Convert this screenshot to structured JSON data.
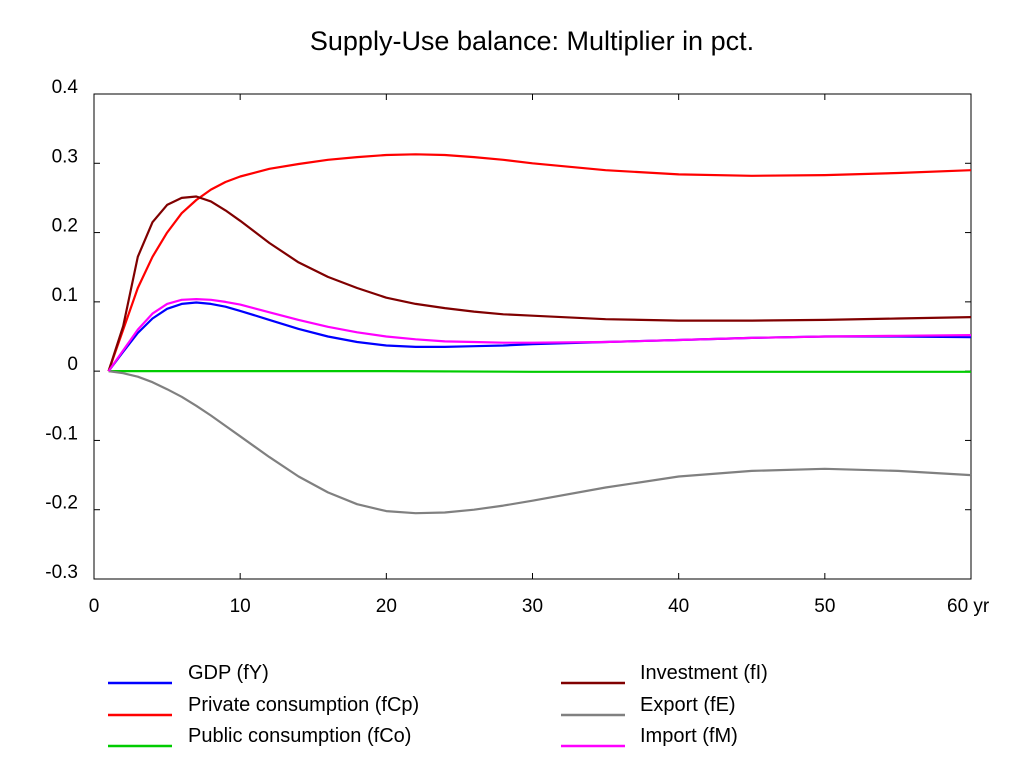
{
  "chart_data": {
    "type": "line",
    "title": "Supply-Use balance: Multiplier in pct.",
    "xlabel": "",
    "ylabel": "",
    "x_unit_label": "yr",
    "xlim": [
      0,
      60
    ],
    "ylim": [
      -0.3,
      0.4
    ],
    "x_ticks": [
      0,
      10,
      20,
      30,
      40,
      50,
      60
    ],
    "x_tick_labels": [
      "0",
      "10",
      "20",
      "30",
      "40",
      "50",
      "60 yr"
    ],
    "y_ticks": [
      -0.3,
      -0.2,
      -0.1,
      0,
      0.1,
      0.2,
      0.3,
      0.4
    ],
    "y_tick_labels": [
      "-0.3",
      "-0.2",
      "-0.1",
      "0",
      "0.1",
      "0.2",
      "0.3",
      "0.4"
    ],
    "grid": false,
    "legend_position": "bottom",
    "series": [
      {
        "name": "GDP (fY)",
        "color": "#0000ff",
        "x": [
          1,
          2,
          3,
          4,
          5,
          6,
          7,
          8,
          9,
          10,
          12,
          14,
          16,
          18,
          20,
          22,
          24,
          26,
          28,
          30,
          35,
          40,
          45,
          50,
          55,
          60
        ],
        "y": [
          0,
          0.028,
          0.055,
          0.076,
          0.09,
          0.097,
          0.099,
          0.097,
          0.093,
          0.087,
          0.074,
          0.061,
          0.05,
          0.042,
          0.037,
          0.035,
          0.035,
          0.036,
          0.037,
          0.039,
          0.042,
          0.045,
          0.048,
          0.05,
          0.05,
          0.049
        ]
      },
      {
        "name": "Private consumption (fCp)",
        "color": "#ff0000",
        "x": [
          1,
          2,
          3,
          4,
          5,
          6,
          7,
          8,
          9,
          10,
          12,
          14,
          16,
          18,
          20,
          22,
          24,
          26,
          28,
          30,
          35,
          40,
          45,
          50,
          55,
          60
        ],
        "y": [
          0,
          0.06,
          0.12,
          0.165,
          0.2,
          0.228,
          0.247,
          0.262,
          0.273,
          0.281,
          0.292,
          0.299,
          0.305,
          0.309,
          0.312,
          0.313,
          0.312,
          0.309,
          0.305,
          0.3,
          0.29,
          0.284,
          0.282,
          0.283,
          0.286,
          0.29
        ]
      },
      {
        "name": "Public consumption (fCo)",
        "color": "#00cc00",
        "x": [
          1,
          10,
          20,
          30,
          40,
          50,
          60
        ],
        "y": [
          0,
          0,
          0,
          -0.001,
          -0.001,
          -0.001,
          -0.001
        ]
      },
      {
        "name": "Investment (fI)",
        "color": "#800000",
        "x": [
          1,
          2,
          3,
          4,
          5,
          6,
          7,
          8,
          9,
          10,
          12,
          14,
          16,
          18,
          20,
          22,
          24,
          26,
          28,
          30,
          35,
          40,
          45,
          50,
          55,
          60
        ],
        "y": [
          0,
          0.065,
          0.165,
          0.215,
          0.24,
          0.25,
          0.252,
          0.245,
          0.232,
          0.217,
          0.185,
          0.157,
          0.136,
          0.12,
          0.106,
          0.097,
          0.091,
          0.086,
          0.082,
          0.08,
          0.075,
          0.073,
          0.073,
          0.074,
          0.076,
          0.078
        ]
      },
      {
        "name": "Export (fE)",
        "color": "#808080",
        "x": [
          1,
          2,
          3,
          4,
          5,
          6,
          7,
          8,
          9,
          10,
          12,
          14,
          16,
          18,
          20,
          22,
          24,
          26,
          28,
          30,
          35,
          40,
          45,
          50,
          55,
          60
        ],
        "y": [
          0,
          -0.003,
          -0.008,
          -0.016,
          -0.026,
          -0.037,
          -0.05,
          -0.064,
          -0.079,
          -0.094,
          -0.124,
          -0.152,
          -0.175,
          -0.192,
          -0.202,
          -0.205,
          -0.204,
          -0.2,
          -0.194,
          -0.187,
          -0.168,
          -0.152,
          -0.144,
          -0.141,
          -0.144,
          -0.15
        ]
      },
      {
        "name": "Import (fM)",
        "color": "#ff00ff",
        "x": [
          1,
          2,
          3,
          4,
          5,
          6,
          7,
          8,
          9,
          10,
          12,
          14,
          16,
          18,
          20,
          22,
          24,
          26,
          28,
          30,
          35,
          40,
          45,
          50,
          55,
          60
        ],
        "y": [
          0,
          0.03,
          0.06,
          0.083,
          0.097,
          0.103,
          0.104,
          0.103,
          0.1,
          0.096,
          0.085,
          0.074,
          0.064,
          0.056,
          0.05,
          0.046,
          0.043,
          0.042,
          0.041,
          0.041,
          0.042,
          0.045,
          0.048,
          0.05,
          0.051,
          0.052
        ]
      }
    ]
  }
}
